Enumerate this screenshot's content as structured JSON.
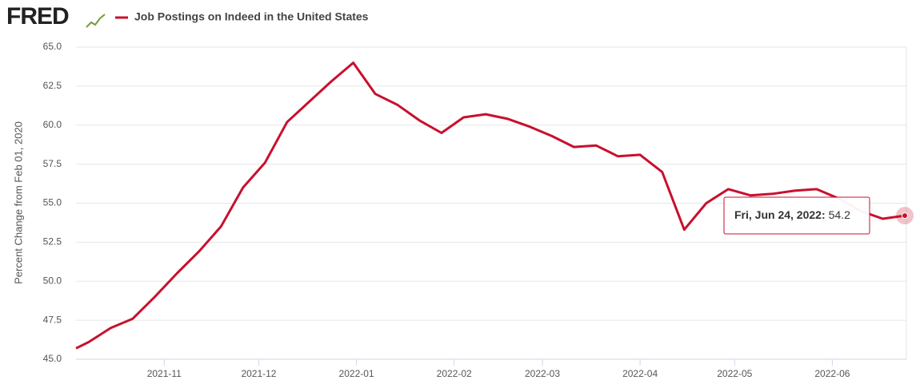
{
  "logo": "FRED",
  "chart_data": {
    "type": "line",
    "title": "Job Postings on Indeed in the United States",
    "y_label": "Percent Change from Feb 01, 2020",
    "x": [
      "2021-10-04",
      "2021-10-08",
      "2021-10-15",
      "2021-10-22",
      "2021-10-29",
      "2021-11-05",
      "2021-11-12",
      "2021-11-19",
      "2021-11-26",
      "2021-12-03",
      "2021-12-10",
      "2021-12-17",
      "2021-12-24",
      "2021-12-31",
      "2022-01-07",
      "2022-01-14",
      "2022-01-21",
      "2022-01-28",
      "2022-02-04",
      "2022-02-11",
      "2022-02-18",
      "2022-02-25",
      "2022-03-04",
      "2022-03-11",
      "2022-03-18",
      "2022-03-25",
      "2022-04-01",
      "2022-04-08",
      "2022-04-15",
      "2022-04-22",
      "2022-04-29",
      "2022-05-06",
      "2022-05-13",
      "2022-05-20",
      "2022-05-27",
      "2022-06-03",
      "2022-06-10",
      "2022-06-17",
      "2022-06-24"
    ],
    "series": [
      {
        "name": "Job Postings on Indeed in the United States",
        "color": "#c8102e",
        "values": [
          45.7,
          46.1,
          47.0,
          47.6,
          49.0,
          50.5,
          51.9,
          53.5,
          56.0,
          57.6,
          60.2,
          61.5,
          62.8,
          64.0,
          62.0,
          61.3,
          60.3,
          59.5,
          60.5,
          60.7,
          60.4,
          59.9,
          59.3,
          58.6,
          58.7,
          58.0,
          58.1,
          57.0,
          53.3,
          55.0,
          55.9,
          55.5,
          55.6,
          55.8,
          55.9,
          55.3,
          54.5,
          54.0,
          54.2
        ]
      }
    ],
    "xlim": [
      "2021-10-04",
      "2022-06-24"
    ],
    "xticks": [
      {
        "value": "2021-11-01",
        "label": "2021-11"
      },
      {
        "value": "2021-12-01",
        "label": "2021-12"
      },
      {
        "value": "2022-01-01",
        "label": "2022-01"
      },
      {
        "value": "2022-02-01",
        "label": "2022-02"
      },
      {
        "value": "2022-03-01",
        "label": "2022-03"
      },
      {
        "value": "2022-04-01",
        "label": "2022-04"
      },
      {
        "value": "2022-05-01",
        "label": "2022-05"
      },
      {
        "value": "2022-06-01",
        "label": "2022-06"
      }
    ],
    "ylim": [
      45,
      65
    ],
    "yticks": [
      {
        "value": 45,
        "label": "45.0"
      },
      {
        "value": 47.5,
        "label": "47.5"
      },
      {
        "value": 50,
        "label": "50.0"
      },
      {
        "value": 52.5,
        "label": "52.5"
      },
      {
        "value": 55,
        "label": "55.0"
      },
      {
        "value": 57.5,
        "label": "57.5"
      },
      {
        "value": 60,
        "label": "60.0"
      },
      {
        "value": 62.5,
        "label": "62.5"
      },
      {
        "value": 65,
        "label": "65.0"
      }
    ],
    "grid": true,
    "tooltip": {
      "label": "Fri, Jun 24, 2022:"
    }
  }
}
